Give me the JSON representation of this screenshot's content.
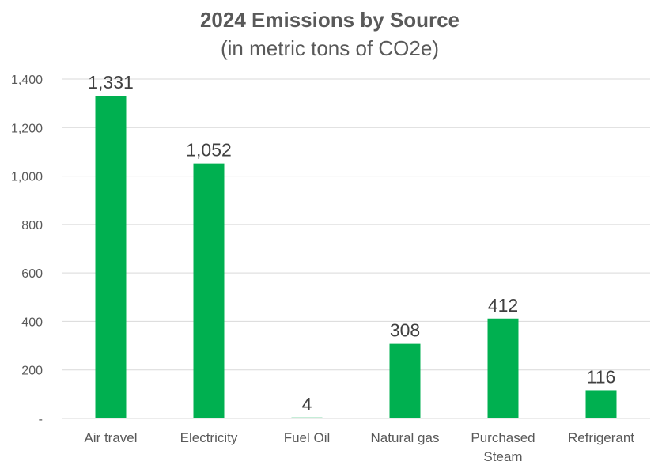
{
  "chart_data": {
    "type": "bar",
    "title": "2024 Emissions by Source",
    "subtitle": "(in metric tons of CO2e)",
    "categories": [
      "Air travel",
      "Electricity",
      "Fuel Oil",
      "Natural gas",
      "Purchased Steam",
      "Refrigerant"
    ],
    "category_lines": [
      [
        "Air travel"
      ],
      [
        "Electricity"
      ],
      [
        "Fuel Oil"
      ],
      [
        "Natural gas"
      ],
      [
        "Purchased",
        "Steam"
      ],
      [
        "Refrigerant"
      ]
    ],
    "values": [
      1331,
      1052,
      4,
      308,
      412,
      116
    ],
    "data_labels": [
      "1,331",
      "1,052",
      "4",
      "308",
      "412",
      "116"
    ],
    "ylim": [
      0,
      1400
    ],
    "y_ticks": [
      {
        "value": 0,
        "label": "-"
      },
      {
        "value": 200,
        "label": "200"
      },
      {
        "value": 400,
        "label": "400"
      },
      {
        "value": 600,
        "label": "600"
      },
      {
        "value": 800,
        "label": "800"
      },
      {
        "value": 1000,
        "label": "1,000"
      },
      {
        "value": 1200,
        "label": "1,200"
      },
      {
        "value": 1400,
        "label": "1,400"
      }
    ],
    "xlabel": "",
    "ylabel": "",
    "grid": true,
    "legend": "none",
    "colors": {
      "bar": "#00B050",
      "grid": "#D9D9D9",
      "text": "#595959",
      "data_label": "#404040"
    }
  }
}
